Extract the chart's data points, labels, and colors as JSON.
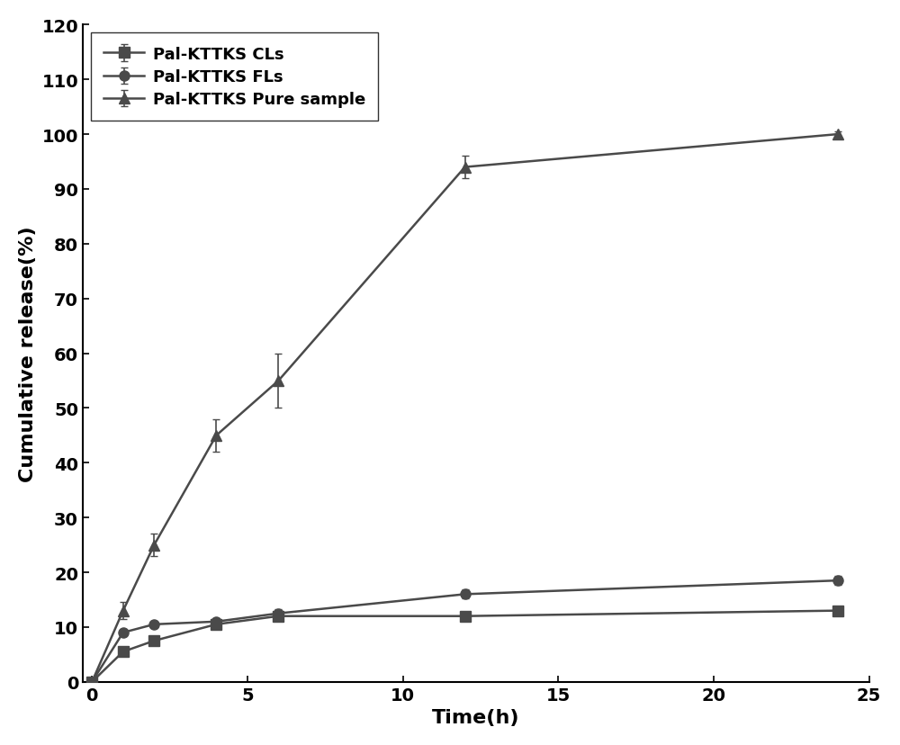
{
  "series": [
    {
      "label": "Pal-KTTKS CLs",
      "marker": "s",
      "color": "#4a4a4a",
      "x": [
        0,
        1,
        2,
        4,
        6,
        12,
        24
      ],
      "y": [
        0,
        5.5,
        7.5,
        10.5,
        12,
        12,
        13
      ],
      "yerr": [
        0,
        0.5,
        0.5,
        0.5,
        0.8,
        0.5,
        0.5
      ]
    },
    {
      "label": "Pal-KTTKS FLs",
      "marker": "o",
      "color": "#4a4a4a",
      "x": [
        0,
        1,
        2,
        4,
        6,
        12,
        24
      ],
      "y": [
        0,
        9,
        10.5,
        11,
        12.5,
        16,
        18.5
      ],
      "yerr": [
        0,
        0.5,
        0.5,
        0.5,
        0.8,
        0.8,
        0.8
      ]
    },
    {
      "label": "Pal-KTTKS Pure sample",
      "marker": "^",
      "color": "#4a4a4a",
      "x": [
        0,
        1,
        2,
        4,
        6,
        12,
        24
      ],
      "y": [
        0,
        13,
        25,
        45,
        55,
        94,
        100
      ],
      "yerr": [
        0,
        1.5,
        2,
        3,
        5,
        2,
        0.5
      ]
    }
  ],
  "xlabel": "Time(h)",
  "ylabel": "Cumulative release(%)",
  "xlim": [
    -0.3,
    25
  ],
  "ylim": [
    0,
    120
  ],
  "yticks": [
    0,
    10,
    20,
    30,
    40,
    50,
    60,
    70,
    80,
    90,
    100,
    110,
    120
  ],
  "xticks": [
    0,
    5,
    10,
    15,
    20,
    25
  ],
  "background_color": "#ffffff",
  "line_width": 1.8,
  "marker_size": 8,
  "font_size": 14,
  "legend_fontsize": 13,
  "axis_fontsize": 16,
  "tick_fontsize": 14
}
